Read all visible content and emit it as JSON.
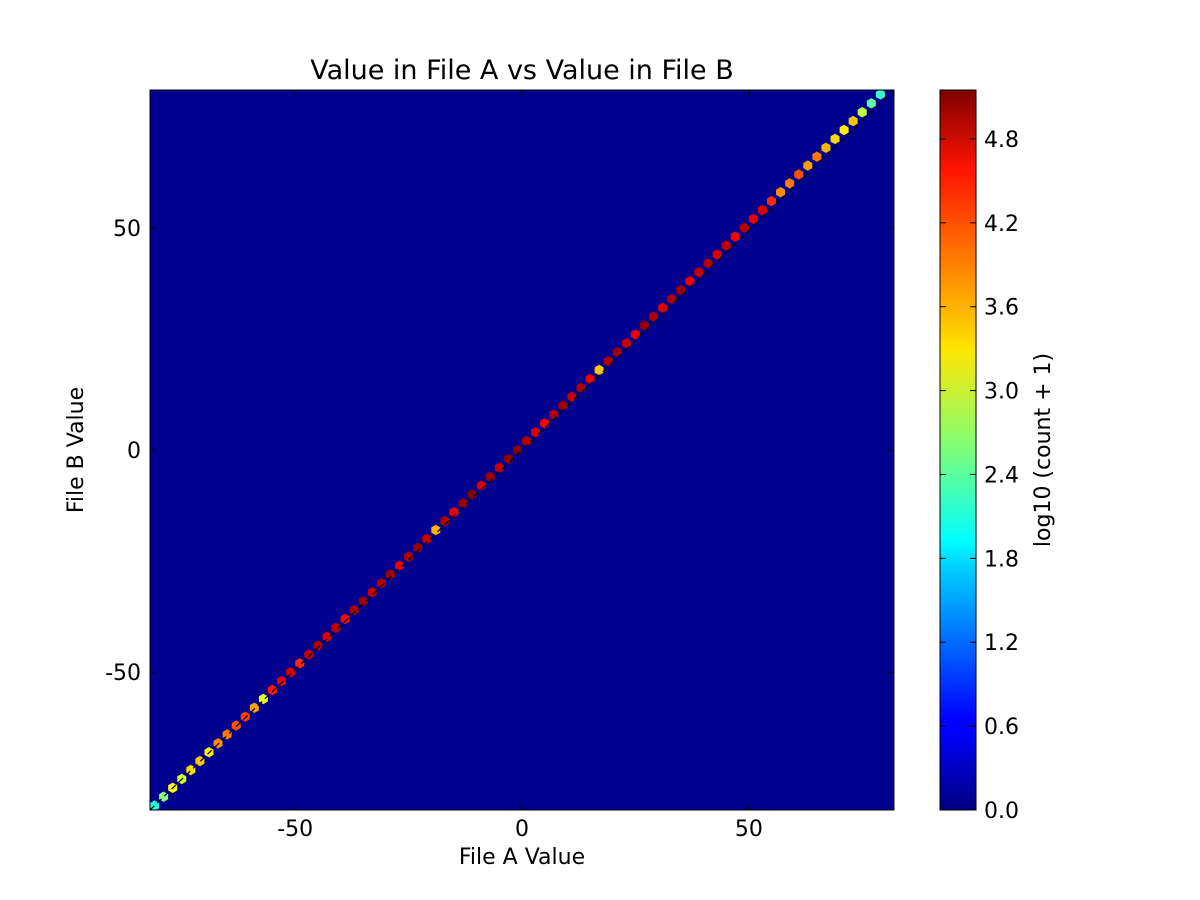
{
  "chart_data": {
    "type": "heatmap",
    "subtype": "hexbin",
    "title": "Value in File A vs Value in File B",
    "xlabel": "File A Value",
    "ylabel": "File B Value",
    "xlim": [
      -82,
      82
    ],
    "ylim": [
      -81,
      81
    ],
    "xticks": [
      -50,
      0,
      50
    ],
    "yticks": [
      -50,
      0,
      50
    ],
    "grid": false,
    "background_value": 0.0,
    "reference_line": {
      "from": [
        -82,
        -81
      ],
      "to": [
        82,
        81
      ],
      "style": "dashed",
      "color": "#000000"
    },
    "colorbar": {
      "label": "log10 (count + 1)",
      "range": [
        0,
        5.15
      ],
      "ticks": [
        "0.0",
        "0.6",
        "1.2",
        "1.8",
        "2.4",
        "3.0",
        "3.6",
        "4.2",
        "4.8"
      ],
      "colormap": "jet",
      "placement": "right"
    },
    "bins": [
      [
        -81,
        -80,
        2.1
      ],
      [
        -79,
        -78,
        2.6
      ],
      [
        -77,
        -76,
        3.2
      ],
      [
        -75,
        -74,
        3.0
      ],
      [
        -73,
        -72,
        3.4
      ],
      [
        -71,
        -70,
        3.5
      ],
      [
        -69,
        -68,
        3.3
      ],
      [
        -67,
        -66,
        3.8
      ],
      [
        -65,
        -64,
        3.9
      ],
      [
        -63,
        -62,
        4.1
      ],
      [
        -61,
        -60,
        4.2
      ],
      [
        -59,
        -58,
        3.7
      ],
      [
        -57,
        -56,
        3.1
      ],
      [
        -55,
        -54,
        4.4
      ],
      [
        -53,
        -52,
        4.6
      ],
      [
        -51,
        -50,
        4.7
      ],
      [
        -49,
        -48,
        4.3
      ],
      [
        -47,
        -46,
        4.8
      ],
      [
        -45,
        -44,
        4.9
      ],
      [
        -43,
        -42,
        4.7
      ],
      [
        -41,
        -40,
        4.8
      ],
      [
        -39,
        -38,
        4.5
      ],
      [
        -37,
        -36,
        4.9
      ],
      [
        -35,
        -34,
        5.0
      ],
      [
        -33,
        -32,
        4.8
      ],
      [
        -31,
        -30,
        4.9
      ],
      [
        -29,
        -28,
        5.0
      ],
      [
        -27,
        -26,
        4.6
      ],
      [
        -25,
        -24,
        4.9
      ],
      [
        -23,
        -22,
        5.0
      ],
      [
        -21,
        -20,
        4.8
      ],
      [
        -19,
        -18,
        3.6
      ],
      [
        -17,
        -16,
        4.9
      ],
      [
        -15,
        -14,
        4.6
      ],
      [
        -13,
        -12,
        5.0
      ],
      [
        -11,
        -10,
        5.1
      ],
      [
        -9,
        -8,
        4.7
      ],
      [
        -7,
        -6,
        5.0
      ],
      [
        -5,
        -4,
        4.8
      ],
      [
        -3,
        -2,
        5.1
      ],
      [
        -1,
        0,
        5.1
      ],
      [
        1,
        2,
        4.9
      ],
      [
        3,
        4,
        4.7
      ],
      [
        5,
        6,
        4.5
      ],
      [
        7,
        8,
        4.9
      ],
      [
        9,
        10,
        5.0
      ],
      [
        11,
        12,
        4.8
      ],
      [
        13,
        14,
        4.9
      ],
      [
        15,
        16,
        4.6
      ],
      [
        17,
        18,
        3.5
      ],
      [
        19,
        20,
        4.9
      ],
      [
        21,
        22,
        5.0
      ],
      [
        23,
        24,
        4.8
      ],
      [
        25,
        26,
        4.6
      ],
      [
        27,
        28,
        5.0
      ],
      [
        29,
        30,
        4.9
      ],
      [
        31,
        32,
        4.7
      ],
      [
        33,
        34,
        4.9
      ],
      [
        35,
        36,
        5.0
      ],
      [
        37,
        38,
        4.6
      ],
      [
        39,
        40,
        4.8
      ],
      [
        41,
        42,
        4.9
      ],
      [
        43,
        44,
        4.7
      ],
      [
        45,
        46,
        4.8
      ],
      [
        47,
        48,
        4.5
      ],
      [
        49,
        50,
        4.9
      ],
      [
        51,
        52,
        4.6
      ],
      [
        53,
        54,
        4.7
      ],
      [
        55,
        56,
        4.3
      ],
      [
        57,
        58,
        3.8
      ],
      [
        59,
        60,
        3.9
      ],
      [
        61,
        62,
        4.1
      ],
      [
        63,
        64,
        3.7
      ],
      [
        65,
        66,
        3.9
      ],
      [
        67,
        68,
        3.6
      ],
      [
        69,
        70,
        3.4
      ],
      [
        71,
        72,
        3.3
      ],
      [
        73,
        74,
        3.5
      ],
      [
        75,
        76,
        2.9
      ],
      [
        77,
        78,
        2.4
      ],
      [
        79,
        80,
        2.2
      ]
    ]
  }
}
